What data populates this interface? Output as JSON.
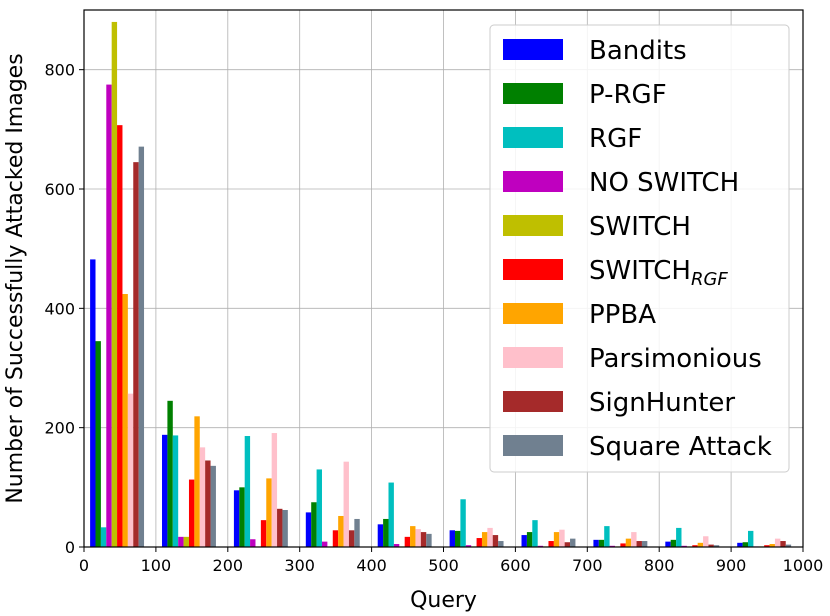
{
  "chart_data": {
    "type": "bar",
    "xlabel": "Query",
    "ylabel": "Number of Successfully Attacked Images",
    "xlim": [
      0,
      1000
    ],
    "ylim": [
      0,
      900
    ],
    "xticks": [
      0,
      100,
      200,
      300,
      400,
      500,
      600,
      700,
      800,
      900,
      1000
    ],
    "yticks": [
      0,
      200,
      400,
      600,
      800
    ],
    "grid": true,
    "legend_position": "top-right",
    "bins": [
      [
        0,
        100
      ],
      [
        100,
        200
      ],
      [
        200,
        300
      ],
      [
        300,
        400
      ],
      [
        400,
        500
      ],
      [
        500,
        600
      ],
      [
        600,
        700
      ],
      [
        700,
        800
      ],
      [
        800,
        900
      ],
      [
        900,
        1000
      ]
    ],
    "series": [
      {
        "name": "Bandits",
        "color": "#0000ff",
        "values": [
          482,
          188,
          95,
          58,
          38,
          28,
          20,
          12,
          9,
          7
        ]
      },
      {
        "name": "P-RGF",
        "color": "#008000",
        "values": [
          345,
          245,
          100,
          75,
          47,
          27,
          25,
          12,
          12,
          8
        ]
      },
      {
        "name": "RGF",
        "color": "#00bfbf",
        "values": [
          33,
          187,
          186,
          130,
          108,
          80,
          45,
          35,
          32,
          27
        ]
      },
      {
        "name": "NO SWITCH",
        "color": "#bf00bf",
        "values": [
          775,
          17,
          13,
          9,
          5,
          3,
          2,
          2,
          2,
          1
        ]
      },
      {
        "name": "SWITCH",
        "color": "#bfbf00",
        "values": [
          880,
          17,
          1,
          1,
          1,
          1,
          1,
          1,
          1,
          1
        ]
      },
      {
        "name": "SWITCH",
        "name_sub": "RGF",
        "color": "#ff0000",
        "values": [
          707,
          113,
          45,
          28,
          17,
          15,
          10,
          6,
          3,
          3
        ]
      },
      {
        "name": "PPBA",
        "color": "#ffa500",
        "values": [
          424,
          219,
          115,
          52,
          35,
          25,
          25,
          14,
          7,
          5
        ]
      },
      {
        "name": "Parsimonious",
        "color": "#ffc0cb",
        "values": [
          257,
          167,
          191,
          143,
          30,
          32,
          29,
          25,
          18,
          14
        ]
      },
      {
        "name": "SignHunter",
        "color": "#a52a2a",
        "values": [
          645,
          145,
          64,
          28,
          25,
          20,
          8,
          10,
          4,
          10
        ]
      },
      {
        "name": "Square Attack",
        "color": "#708090",
        "values": [
          671,
          136,
          62,
          47,
          22,
          10,
          14,
          10,
          3,
          4
        ]
      }
    ]
  }
}
